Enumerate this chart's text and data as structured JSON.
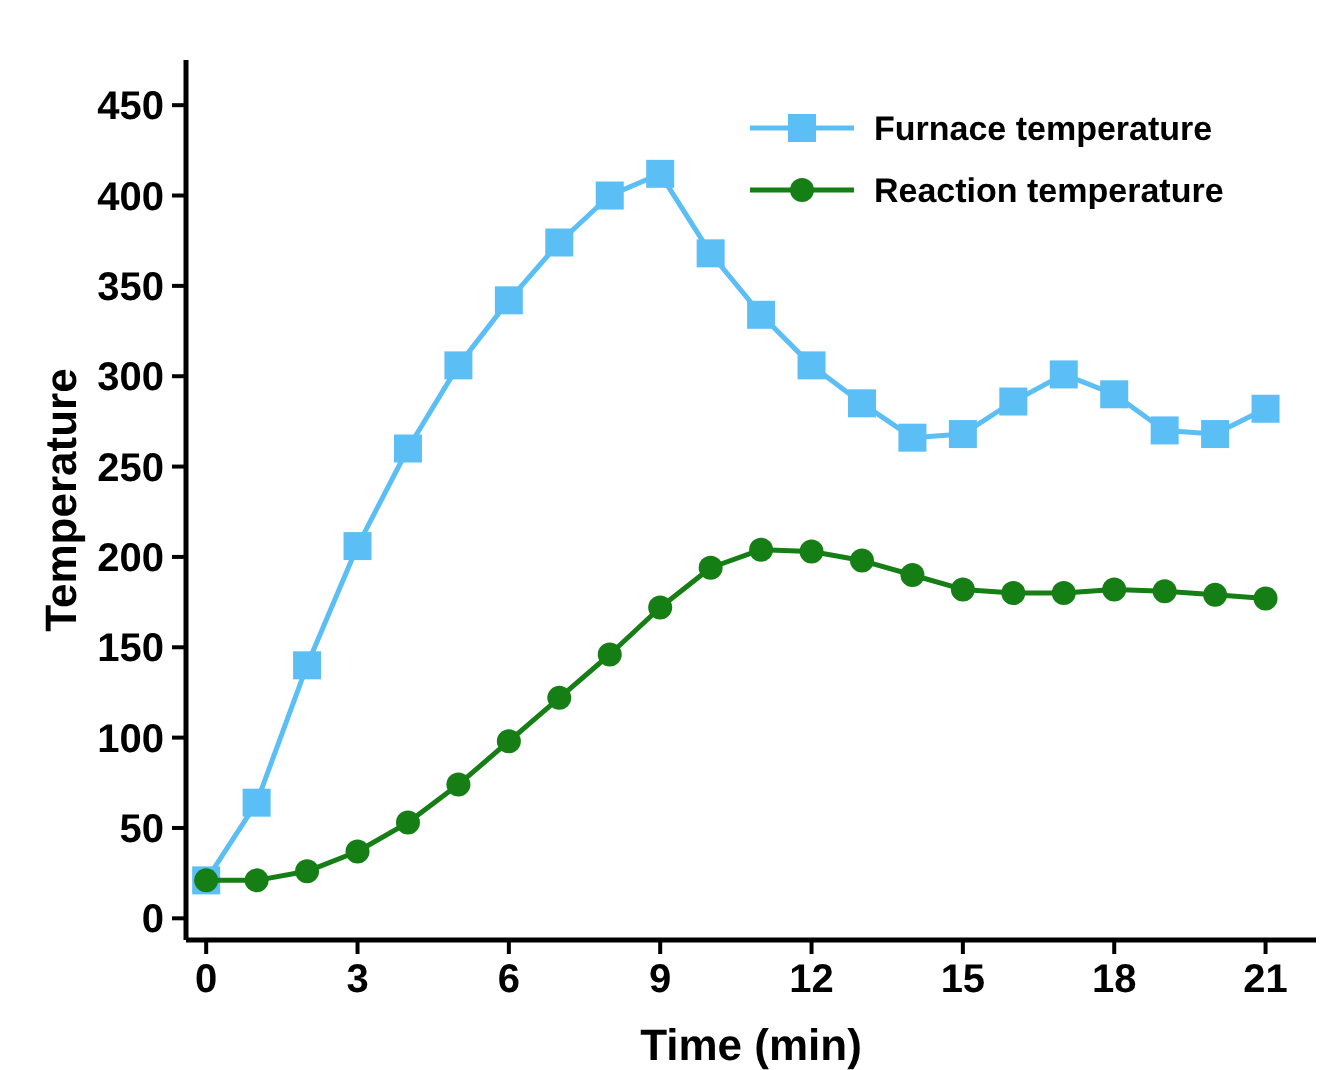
{
  "chart_data": {
    "type": "line",
    "xlabel": "Time (min)",
    "ylabel": "Temperature",
    "x": [
      0,
      1,
      2,
      3,
      4,
      5,
      6,
      7,
      8,
      9,
      10,
      11,
      12,
      13,
      14,
      15,
      16,
      17,
      18,
      19,
      20,
      21
    ],
    "series": [
      {
        "name": "Furnace temperature",
        "color": "#5bbff5",
        "marker": "square",
        "values": [
          21,
          64,
          140,
          206,
          260,
          306,
          342,
          374,
          400,
          412,
          368,
          334,
          306,
          285,
          266,
          268,
          286,
          301,
          290,
          270,
          268,
          282
        ]
      },
      {
        "name": "Reaction temperature",
        "color": "#157f15",
        "marker": "circle",
        "values": [
          21,
          21,
          26,
          37,
          53,
          74,
          98,
          122,
          146,
          172,
          194,
          204,
          203,
          198,
          190,
          182,
          180,
          180,
          182,
          181,
          179,
          177
        ]
      }
    ],
    "xlim": [
      -0.4,
      22
    ],
    "xticks": [
      0,
      3,
      6,
      9,
      12,
      15,
      18,
      21
    ],
    "ylim": [
      -12,
      475
    ],
    "yticks": [
      0,
      50,
      100,
      150,
      200,
      250,
      300,
      350,
      400,
      450
    ],
    "legend": "top right",
    "grid": false,
    "line_style": "solid"
  }
}
